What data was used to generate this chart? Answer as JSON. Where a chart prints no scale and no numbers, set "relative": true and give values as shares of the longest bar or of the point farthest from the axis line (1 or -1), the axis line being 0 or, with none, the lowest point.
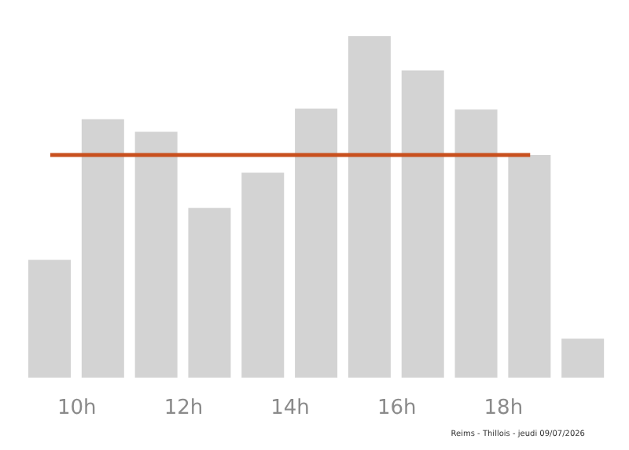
{
  "chart_data": {
    "type": "bar",
    "relative": true,
    "x": [
      9.5,
      10.5,
      11.5,
      12.5,
      13.5,
      14.5,
      15.5,
      16.5,
      17.5,
      18.5,
      19.5
    ],
    "values": [
      0.345,
      0.757,
      0.72,
      0.497,
      0.6,
      0.788,
      1,
      0.9,
      0.785,
      0.652,
      0.114
    ],
    "color": "#d3d3d3",
    "xlim": [
      9,
      20
    ],
    "xticks": [
      {
        "value": 10,
        "label": "10h"
      },
      {
        "value": 12,
        "label": "12h"
      },
      {
        "value": 14,
        "label": "14h"
      },
      {
        "value": 16,
        "label": "16h"
      },
      {
        "value": 18,
        "label": "18h"
      }
    ],
    "ref_lines": [
      {
        "axis": "y",
        "value": 0.652,
        "color": "#c8501e"
      }
    ],
    "annotations": [
      "Reims - Thillois - jeudi 09/07/2026"
    ],
    "grid": false,
    "legend": false
  }
}
